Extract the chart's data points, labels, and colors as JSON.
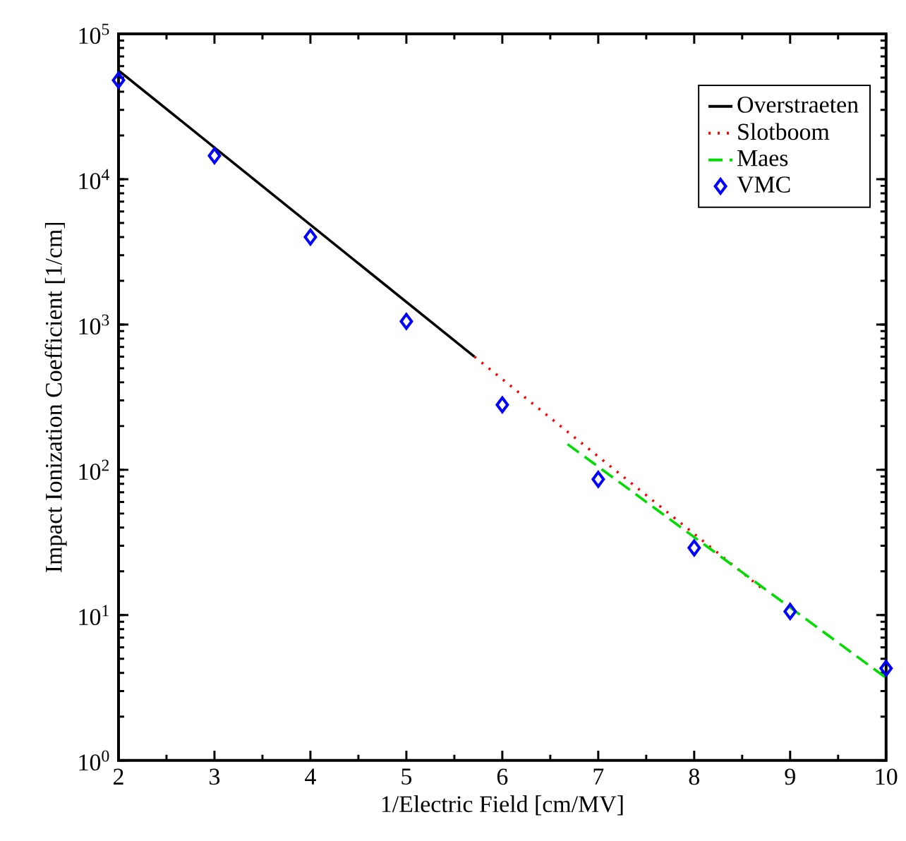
{
  "chart_data": {
    "type": "line",
    "xlabel": "1/Electric Field [cm/MV]",
    "ylabel": "Impact Ionization Coefficient [1/cm]",
    "log": "y",
    "xlim": [
      2,
      10
    ],
    "ylim": [
      1,
      100000
    ],
    "xticks": [
      2,
      3,
      4,
      5,
      6,
      7,
      8,
      9,
      10
    ],
    "yticks": [
      {
        "value": 1,
        "label": "10$^{0}$"
      },
      {
        "value": 10,
        "label": "10$^{1}$"
      },
      {
        "value": 100,
        "label": "10$^{2}$"
      },
      {
        "value": 1000,
        "label": "10$^{3}$"
      },
      {
        "value": 10000,
        "label": "10$^{4}$"
      },
      {
        "value": 100000,
        "label": "10$^{5}$"
      }
    ],
    "legend": "top right",
    "grid": false,
    "series": [
      {
        "name": "Overstraeten",
        "type": "line",
        "line_style": "solid",
        "color": "#000000",
        "x": [
          2,
          5.71
        ],
        "values": [
          56000,
          600
        ]
      },
      {
        "name": "Slotboom",
        "type": "line",
        "line_style": "dotted",
        "color": "#ff0000",
        "x": [
          5.71,
          8.72
        ],
        "values": [
          600,
          15
        ]
      },
      {
        "name": "Maes",
        "type": "line",
        "line_style": "dashed",
        "color": "#00dd00",
        "x": [
          6.68,
          10
        ],
        "values": [
          150,
          3.7
        ]
      },
      {
        "name": "VMC",
        "type": "scatter",
        "marker": "diamond",
        "color": "#0000ff",
        "x": [
          2,
          3,
          4,
          5,
          6,
          7,
          8,
          9,
          10
        ],
        "values": [
          48000,
          14500,
          4000,
          1050,
          280,
          86,
          29,
          10.6,
          4.3
        ]
      }
    ]
  }
}
